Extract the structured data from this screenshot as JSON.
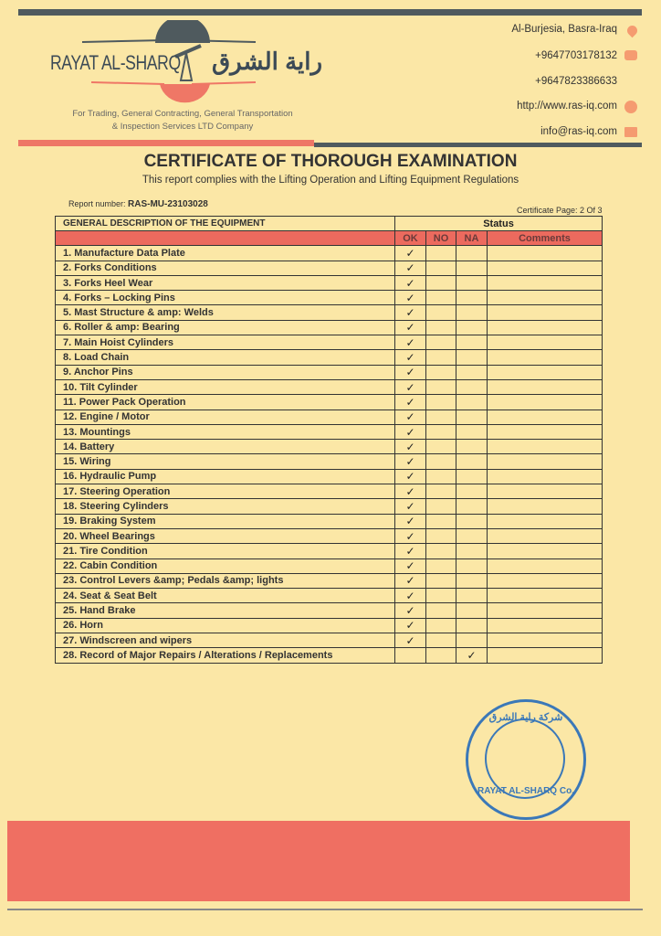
{
  "header": {
    "logo_text": "RAYAT AL-SHARQ",
    "logo_arabic": "راية الشرق",
    "tagline_line1": "For Trading, General Contracting, General Transportation",
    "tagline_line2": "& Inspection Services LTD Company",
    "contacts": [
      {
        "text": "Al-Burjesia, Basra-Iraq",
        "icon": "location-pin-icon"
      },
      {
        "text": "+9647703178132",
        "icon": "phone-icon"
      },
      {
        "text": "+9647823386633",
        "icon": ""
      },
      {
        "text": "http://www.ras-iq.com",
        "icon": "globe-icon"
      },
      {
        "text": "info@ras-iq.com",
        "icon": "envelope-icon"
      }
    ]
  },
  "title": "CERTIFICATE OF THOROUGH EXAMINATION",
  "subtitle": "This report complies with the Lifting Operation and Lifting Equipment Regulations",
  "report_label": "Report number: ",
  "report_number": "RAS-MU-23103028",
  "certificate_page": "Certificate Page: 2 Of 3",
  "table": {
    "section_header": "GENERAL DESCRIPTION OF THE EQUIPMENT",
    "status_header": "Status",
    "columns": [
      "OK",
      "NO",
      "NA",
      "Comments"
    ],
    "check_mark": "✓",
    "rows": [
      {
        "label": "1.   Manufacture Data Plate",
        "status": "OK"
      },
      {
        "label": "2.   Forks Conditions",
        "status": "OK"
      },
      {
        "label": "3.   Forks Heel Wear",
        "status": "OK"
      },
      {
        "label": "4.   Forks – Locking Pins",
        "status": "OK"
      },
      {
        "label": "5.   Mast Structure & amp: Welds",
        "status": "OK"
      },
      {
        "label": "6.   Roller & amp: Bearing",
        "status": "OK"
      },
      {
        "label": "7.   Main Hoist Cylinders",
        "status": "OK"
      },
      {
        "label": "8.   Load Chain",
        "status": "OK"
      },
      {
        "label": "9.   Anchor Pins",
        "status": "OK"
      },
      {
        "label": "10. Tilt Cylinder",
        "status": "OK"
      },
      {
        "label": "11. Power Pack Operation",
        "status": "OK"
      },
      {
        "label": "12. Engine / Motor",
        "status": "OK"
      },
      {
        "label": "13. Mountings",
        "status": "OK"
      },
      {
        "label": "14. Battery",
        "status": "OK"
      },
      {
        "label": "15. Wiring",
        "status": "OK"
      },
      {
        "label": "16. Hydraulic Pump",
        "status": "OK"
      },
      {
        "label": "17. Steering Operation",
        "status": "OK"
      },
      {
        "label": "18. Steering Cylinders",
        "status": "OK"
      },
      {
        "label": "19. Braking System",
        "status": "OK"
      },
      {
        "label": "20. Wheel Bearings",
        "status": "OK"
      },
      {
        "label": "21. Tire Condition",
        "status": "OK"
      },
      {
        "label": "22. Cabin Condition",
        "status": "OK"
      },
      {
        "label": "23. Control Levers &amp; Pedals &amp; lights",
        "status": "OK"
      },
      {
        "label": "24. Seat & Seat Belt",
        "status": "OK"
      },
      {
        "label": "25. Hand Brake",
        "status": "OK"
      },
      {
        "label": "26. Horn",
        "status": "OK"
      },
      {
        "label": "27. Windscreen and wipers",
        "status": "OK"
      },
      {
        "label": "28. Record of Major Repairs / Alterations / Replacements",
        "status": "NA"
      }
    ]
  },
  "stamp": {
    "text": "RAYAT AL-SHARQ Co.",
    "arabic": "شركة راية الشرق"
  },
  "colors": {
    "accent_red": "#ec6a5e",
    "dark_bar": "#4f5a5e",
    "paper": "#fbe7a6",
    "stamp_blue": "#3b78b8"
  }
}
